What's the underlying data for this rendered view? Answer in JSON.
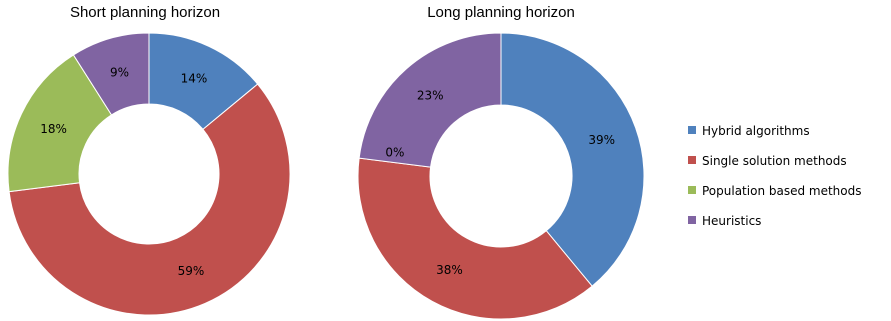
{
  "chart_data": [
    {
      "type": "pie",
      "variant": "doughnut",
      "title": "Short planning horizon",
      "categories": [
        "Hybrid algorithms",
        "Single solution methods",
        "Population based methods",
        "Heuristics"
      ],
      "values": [
        14,
        59,
        18,
        9
      ],
      "labels": [
        "14%",
        "59%",
        "18%",
        "9%"
      ],
      "colors": [
        "#4f81bd",
        "#c0504d",
        "#9bbb59",
        "#8064a2"
      ]
    },
    {
      "type": "pie",
      "variant": "doughnut",
      "title": "Long planning horizon",
      "categories": [
        "Hybrid algorithms",
        "Single solution methods",
        "Population based methods",
        "Heuristics"
      ],
      "values": [
        39,
        38,
        0,
        23
      ],
      "labels": [
        "39%",
        "38%",
        "0%",
        "23%"
      ],
      "colors": [
        "#4f81bd",
        "#c0504d",
        "#9bbb59",
        "#8064a2"
      ]
    }
  ],
  "legend": {
    "position": "right",
    "items": [
      {
        "label": "Hybrid algorithms",
        "color": "#4f81bd"
      },
      {
        "label": "Single solution methods",
        "color": "#c0504d"
      },
      {
        "label": "Population based methods",
        "color": "#9bbb59"
      },
      {
        "label": "Heuristics",
        "color": "#8064a2"
      }
    ]
  }
}
